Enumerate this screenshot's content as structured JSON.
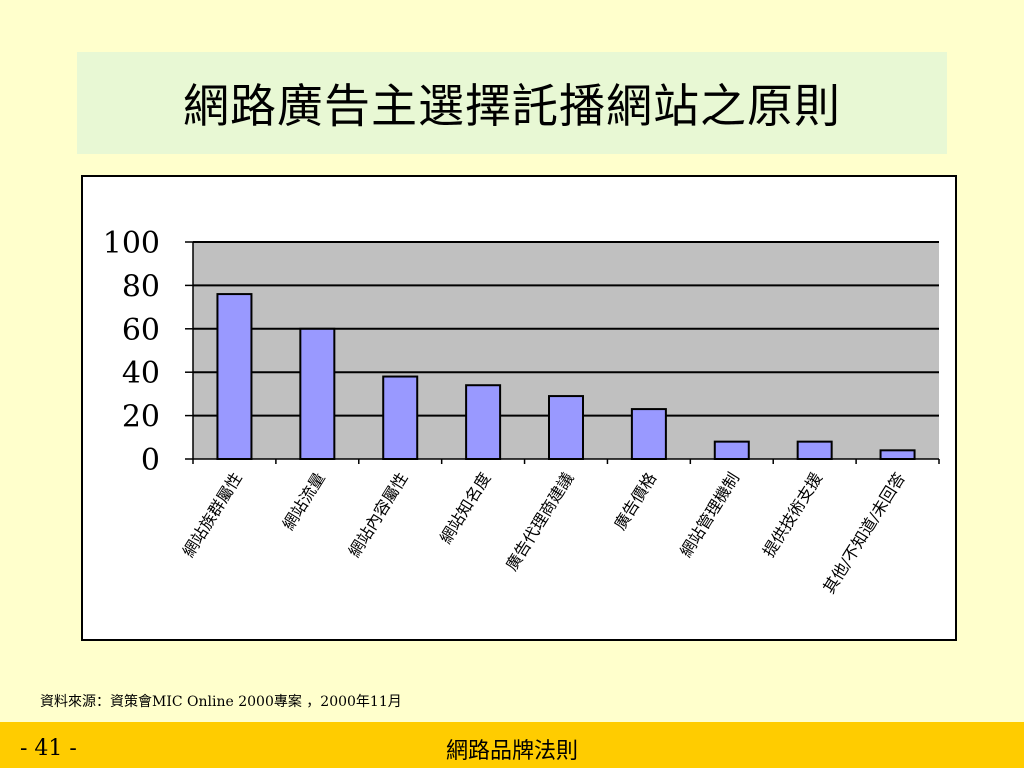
{
  "slide": {
    "title": "網路廣告主選擇託播網站之原則",
    "source": "資料來源：資策會MIC Online 2000專案 ，2000年11月",
    "page_number": "- 41 -",
    "footer_title": "網路品牌法則"
  },
  "colors": {
    "background": "#ffffcc",
    "title_box": "#e8f8d4",
    "plot_area": "#c0c0c0",
    "bar_fill": "#9999ff",
    "footer_bar": "#ffcc00"
  },
  "chart_data": {
    "type": "bar",
    "categories": [
      "網站族群屬性",
      "網站流量",
      "網站內容屬性",
      "網站知名度",
      "廣告代理商建議",
      "廣告價格",
      "網站管理機制",
      "提供技術支援",
      "其他/不知道/未回答"
    ],
    "values": [
      76,
      60,
      38,
      34,
      29,
      23,
      8,
      8,
      4
    ],
    "yticks": [
      0,
      20,
      40,
      60,
      80,
      100
    ],
    "ylim": [
      0,
      100
    ],
    "grid": true
  }
}
